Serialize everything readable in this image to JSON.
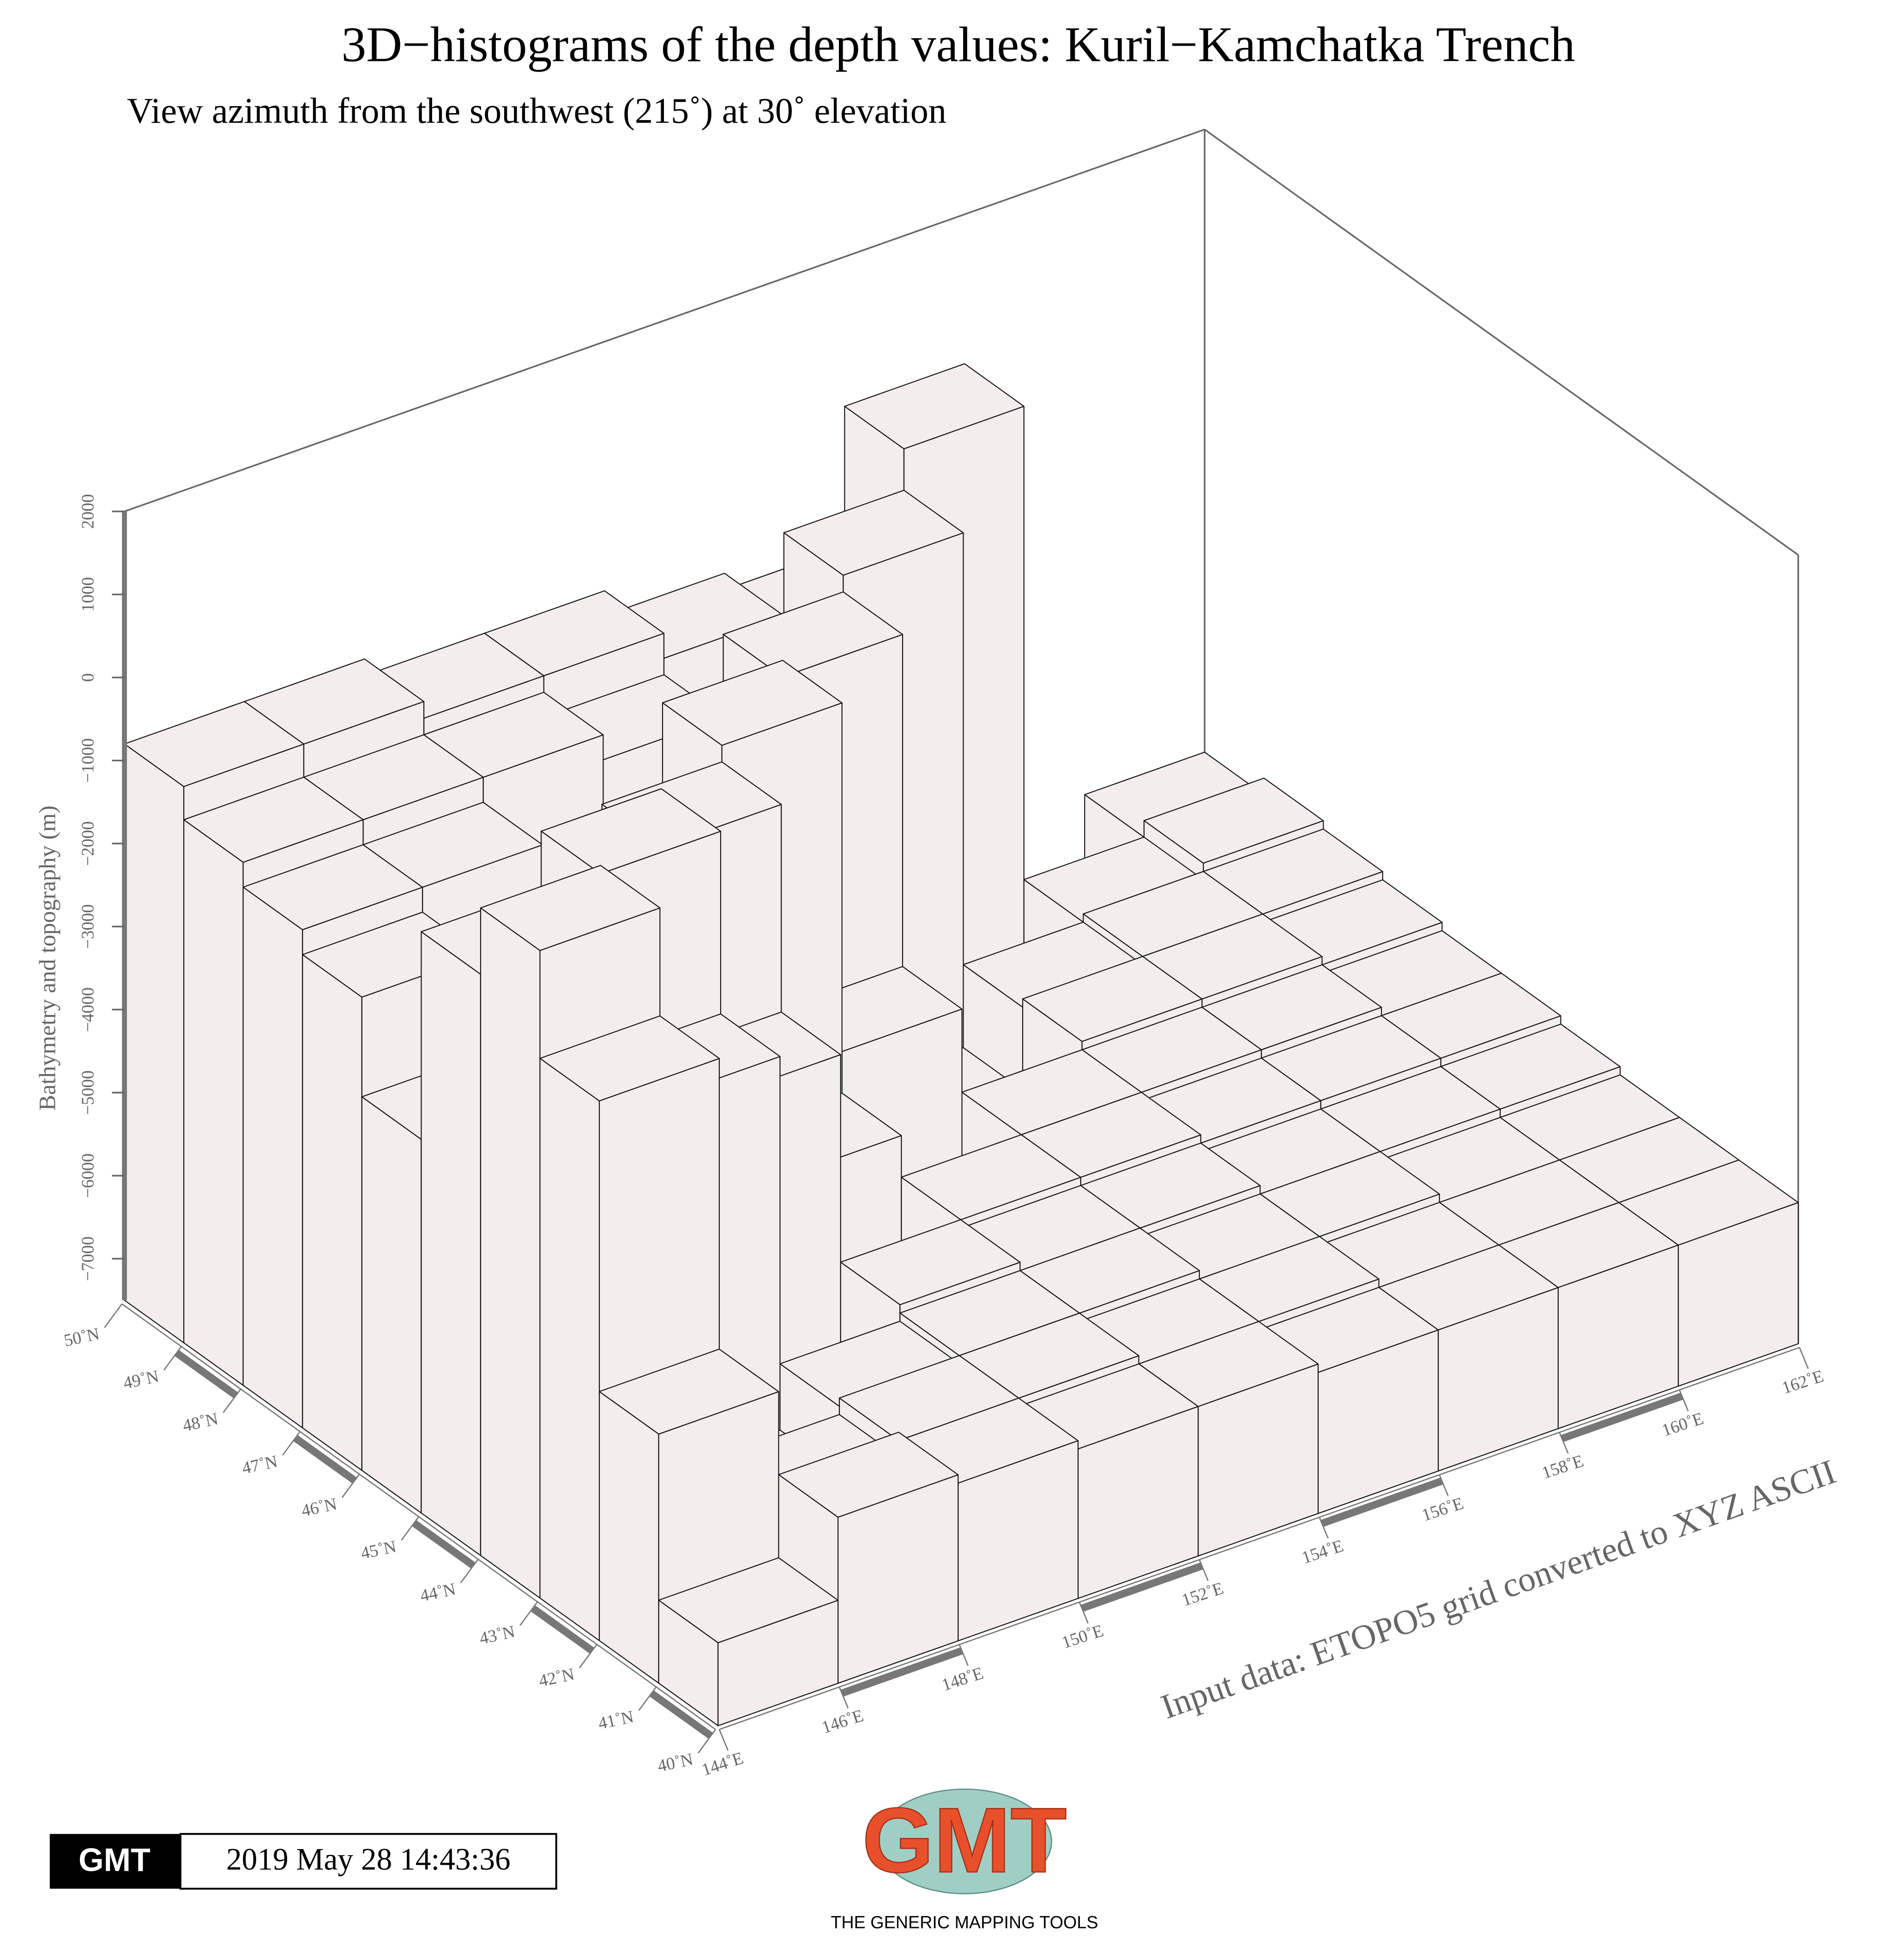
{
  "chart_data": {
    "type": "bar3d",
    "title": "3D−histograms of the depth values: Kuril−Kamchatka Trench",
    "subtitle": "View azimuth from the southwest (215˚) at 30˚ elevation",
    "zlabel": "Bathymetry and topography (m)",
    "annotation": "Input data: ETOPO5 grid converted to XYZ ASCII",
    "xbins": [
      144,
      146,
      148,
      150,
      152,
      154,
      156,
      158,
      160,
      162
    ],
    "ybins": [
      40,
      41,
      42,
      43,
      44,
      45,
      46,
      47,
      48,
      49,
      50
    ],
    "values": [
      [
        -6500,
        -5500,
        -5600,
        -5700,
        -5700,
        -5800,
        -5800,
        -5800,
        -5800
      ],
      [
        -4500,
        -5800,
        -5600,
        -5600,
        -5700,
        -5700,
        -5800,
        -5800,
        -5800
      ],
      [
        -1000,
        -6500,
        -5700,
        -5600,
        -5600,
        -5700,
        -5700,
        -5800,
        -5800
      ],
      [
        300,
        -2000,
        -7000,
        -5500,
        -5600,
        -5600,
        -5700,
        -5700,
        -5700
      ],
      [
        -500,
        200,
        -3000,
        -7300,
        -5500,
        -5500,
        -5600,
        -5600,
        -5600
      ],
      [
        -3000,
        -3200,
        -500,
        -5000,
        -7000,
        -5500,
        -5500,
        -5500,
        -5600
      ],
      [
        -1800,
        -3300,
        -3000,
        -300,
        -4500,
        -7300,
        -5400,
        -5400,
        -5500
      ],
      [
        -1500,
        -1500,
        -2500,
        -3000,
        -500,
        -6500,
        -5500,
        -5400,
        -5400
      ],
      [
        -1200,
        -1200,
        -1200,
        -1500,
        -2500,
        -300,
        -7000,
        -5500,
        -5300
      ],
      [
        -800,
        -800,
        -1000,
        -1000,
        -1300,
        -1500,
        200,
        -7300,
        -5500
      ]
    ],
    "color": "#f3eded",
    "edge_color": "#141414",
    "xlim": [
      144,
      162
    ],
    "ylim": [
      40,
      50
    ],
    "zlim": [
      -7500,
      2000
    ],
    "xticks": [
      {
        "value": 144,
        "label": "144˚E"
      },
      {
        "value": 146,
        "label": "146˚E"
      },
      {
        "value": 148,
        "label": "148˚E"
      },
      {
        "value": 150,
        "label": "150˚E"
      },
      {
        "value": 152,
        "label": "152˚E"
      },
      {
        "value": 154,
        "label": "154˚E"
      },
      {
        "value": 156,
        "label": "156˚E"
      },
      {
        "value": 158,
        "label": "158˚E"
      },
      {
        "value": 160,
        "label": "160˚E"
      },
      {
        "value": 162,
        "label": "162˚E"
      }
    ],
    "yticks": [
      {
        "value": 40,
        "label": "40˚N"
      },
      {
        "value": 41,
        "label": "41˚N"
      },
      {
        "value": 42,
        "label": "42˚N"
      },
      {
        "value": 43,
        "label": "43˚N"
      },
      {
        "value": 44,
        "label": "44˚N"
      },
      {
        "value": 45,
        "label": "45˚N"
      },
      {
        "value": 46,
        "label": "46˚N"
      },
      {
        "value": 47,
        "label": "47˚N"
      },
      {
        "value": 48,
        "label": "48˚N"
      },
      {
        "value": 49,
        "label": "49˚N"
      },
      {
        "value": 50,
        "label": "50˚N"
      }
    ],
    "zticks": [
      {
        "value": -7000,
        "label": "−7000"
      },
      {
        "value": -6000,
        "label": "−6000"
      },
      {
        "value": -5000,
        "label": "−5000"
      },
      {
        "value": -4000,
        "label": "−4000"
      },
      {
        "value": -3000,
        "label": "−3000"
      },
      {
        "value": -2000,
        "label": "−2000"
      },
      {
        "value": -1000,
        "label": "−1000"
      },
      0,
      1000,
      2000
    ],
    "grid": true,
    "timestamp": {
      "logo": "GMT",
      "text": "2019 May 28 14:43:36"
    },
    "logo": {
      "mark": "GMT",
      "caption": "THE GENERIC MAPPING TOOLS"
    }
  }
}
